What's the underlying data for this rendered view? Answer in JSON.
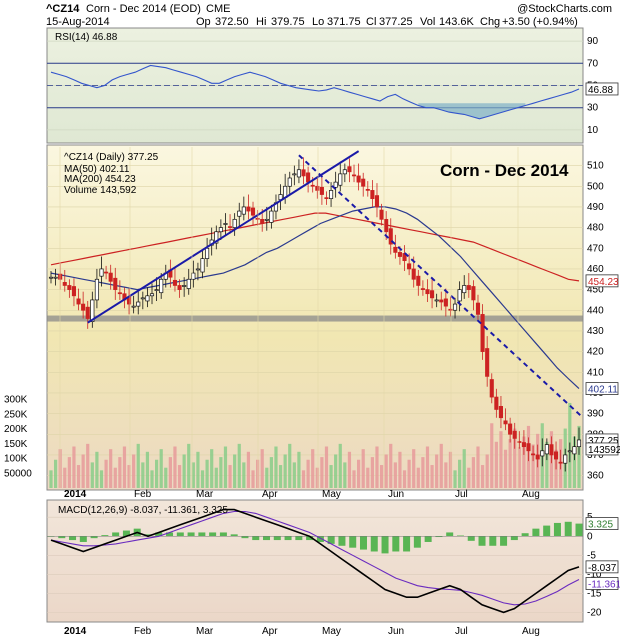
{
  "header": {
    "symbol": "^CZ14",
    "name": "Corn - Dec 2014 (EOD)",
    "exchange": "CME",
    "date": "15-Aug-2014",
    "open_label": "Op",
    "open": "372.50",
    "high_label": "Hi",
    "high": "379.75",
    "low_label": "Lo",
    "low": "371.75",
    "close_label": "Cl",
    "close": "377.25",
    "vol_label": "Vol",
    "vol": "143.6K",
    "chg_label": "Chg",
    "chg": "+3.50 (+0.94%)",
    "watermark": "@StockCharts.com"
  },
  "colors": {
    "up": "#22bb22",
    "down": "#cc2222",
    "ma50": "#2b3a8f",
    "ma200": "#cc2222",
    "trend": "#1a1aa8",
    "macd": "#000000",
    "signal": "#6a2bbf",
    "hist": "#33aa33",
    "rsi": "#3355cc",
    "vol_up": "#88cc88",
    "vol_down": "#e69a9a"
  },
  "chart_data": [
    {
      "type": "line",
      "panel": "rsi",
      "legend": "RSI(14) 46.88",
      "last_label": "46.88",
      "ticks": [
        10,
        30,
        50,
        70,
        90
      ],
      "ylim": [
        0,
        100
      ],
      "ref_lines": [
        30,
        70
      ],
      "series": [
        {
          "name": "RSI(14)",
          "values": [
            62,
            60,
            58,
            55,
            52,
            50,
            48,
            50,
            55,
            58,
            60,
            62,
            65,
            68,
            67,
            66,
            64,
            62,
            60,
            58,
            55,
            52,
            52,
            55,
            58,
            60,
            62,
            60,
            58,
            55,
            52,
            50,
            48,
            47,
            46,
            45,
            46,
            48,
            46,
            44,
            42,
            40,
            38,
            36,
            40,
            42,
            38,
            35,
            32,
            30,
            30,
            28,
            26,
            25,
            24,
            22,
            20,
            22,
            24,
            26,
            28,
            30,
            32,
            34,
            36,
            38,
            40,
            42,
            44,
            46.88
          ]
        }
      ]
    },
    {
      "type": "candlestick",
      "panel": "price",
      "title": "Corn - Dec 2014",
      "legend": [
        {
          "key": "price",
          "label": "^CZ14 (Daily) 377.25"
        },
        {
          "key": "ma50",
          "label": "MA(50) 402.11"
        },
        {
          "key": "ma200",
          "label": "MA(200) 454.23"
        },
        {
          "key": "volume",
          "label": "Volume 143,592"
        }
      ],
      "ticks": [
        360,
        370,
        380,
        390,
        400,
        410,
        420,
        430,
        440,
        450,
        460,
        470,
        480,
        490,
        500,
        510
      ],
      "ylim": [
        354,
        519
      ],
      "last_labels": {
        "ma200": "454.23",
        "ma50": "402.11",
        "close": "377.25",
        "volume": "143592"
      },
      "support_level": 436,
      "closes": [
        456,
        456,
        455,
        452,
        450,
        447,
        443,
        440,
        436,
        445,
        455,
        460,
        458,
        454,
        450,
        448,
        445,
        443,
        442,
        444,
        446,
        447,
        448,
        450,
        455,
        458,
        456,
        452,
        450,
        452,
        455,
        458,
        460,
        465,
        470,
        474,
        478,
        480,
        482,
        480,
        484,
        488,
        490,
        488,
        486,
        484,
        482,
        484,
        488,
        492,
        496,
        500,
        504,
        506,
        508,
        505,
        502,
        500,
        498,
        496,
        494,
        498,
        502,
        506,
        508,
        507,
        505,
        502,
        500,
        498,
        494,
        490,
        484,
        478,
        472,
        468,
        466,
        464,
        460,
        455,
        452,
        450,
        448,
        446,
        445,
        444,
        442,
        440,
        443,
        450,
        452,
        450,
        445,
        438,
        420,
        408,
        398,
        392,
        388,
        385,
        380,
        378,
        376,
        374,
        372,
        370,
        368,
        372,
        375,
        370,
        368,
        366,
        370,
        372,
        374,
        377.25
      ],
      "ma50": [
        458,
        457,
        456,
        455,
        454,
        453,
        452,
        451,
        450,
        451,
        452,
        453,
        454,
        455,
        456,
        457,
        458,
        460,
        462,
        465,
        468,
        470,
        473,
        476,
        479,
        482,
        484,
        486,
        488,
        489,
        490,
        490,
        489,
        487,
        484,
        480,
        476,
        471,
        466,
        460,
        454,
        448,
        442,
        436,
        430,
        424,
        418,
        412,
        407,
        402.11
      ],
      "ma200": [
        462,
        463,
        464,
        465,
        466,
        467,
        468,
        469,
        470,
        471,
        472,
        473,
        474,
        475,
        476,
        477,
        478,
        479,
        480,
        481,
        482,
        483,
        484,
        485,
        486,
        487,
        487,
        486,
        485,
        484,
        483,
        482,
        481,
        480,
        479,
        478,
        477,
        476,
        475,
        474,
        473,
        471,
        469,
        467,
        465,
        463,
        461,
        459,
        457,
        455,
        454.23
      ]
    },
    {
      "type": "bar",
      "panel": "volume",
      "ticks": [
        "50000",
        "100K",
        "150K",
        "200K",
        "250K",
        "300K"
      ],
      "tick_values": [
        50000,
        100000,
        150000,
        200000,
        250000,
        300000
      ],
      "ylim": [
        0,
        350000
      ]
    },
    {
      "type": "line",
      "panel": "macd",
      "legend": "MACD(12,26,9) -8.037, -11.361, 3.325",
      "last_labels": {
        "hist": "3.325",
        "macd": "-8.037",
        "signal": "-11.361"
      },
      "ticks": [
        -20,
        -15,
        -10,
        -5,
        0,
        5
      ],
      "ylim": [
        -22,
        9
      ],
      "series": [
        {
          "name": "MACD",
          "values": [
            -1,
            -2,
            -3,
            -4,
            -3,
            -2,
            -1,
            0,
            1,
            0,
            1,
            2,
            3,
            4,
            5,
            6,
            7,
            7,
            6,
            5,
            4,
            3,
            2,
            1,
            0,
            -2,
            -4,
            -6,
            -8,
            -10,
            -12,
            -14,
            -15,
            -16,
            -16,
            -15,
            -14,
            -13,
            -14,
            -16,
            -18,
            -19,
            -20,
            -19,
            -17,
            -15,
            -13,
            -11,
            -9,
            -8.037
          ]
        },
        {
          "name": "Signal",
          "values": [
            -1,
            -1.5,
            -2,
            -2.5,
            -2.5,
            -2.3,
            -2,
            -1.5,
            -1,
            -0.5,
            0,
            1,
            2,
            3,
            4,
            5,
            6,
            6.5,
            6.5,
            6,
            5,
            4,
            3,
            2,
            1,
            -0.5,
            -2,
            -3.5,
            -5,
            -6.5,
            -8,
            -9.5,
            -11,
            -12,
            -13,
            -13.5,
            -13.8,
            -14,
            -14.2,
            -14.8,
            -15.5,
            -16.5,
            -17.5,
            -18,
            -17.8,
            -17,
            -15.8,
            -14.5,
            -12.8,
            -11.361
          ]
        }
      ]
    }
  ],
  "x_axis": {
    "months": [
      "2014",
      "Feb",
      "Mar",
      "Apr",
      "May",
      "Jun",
      "Jul",
      "Aug"
    ]
  }
}
